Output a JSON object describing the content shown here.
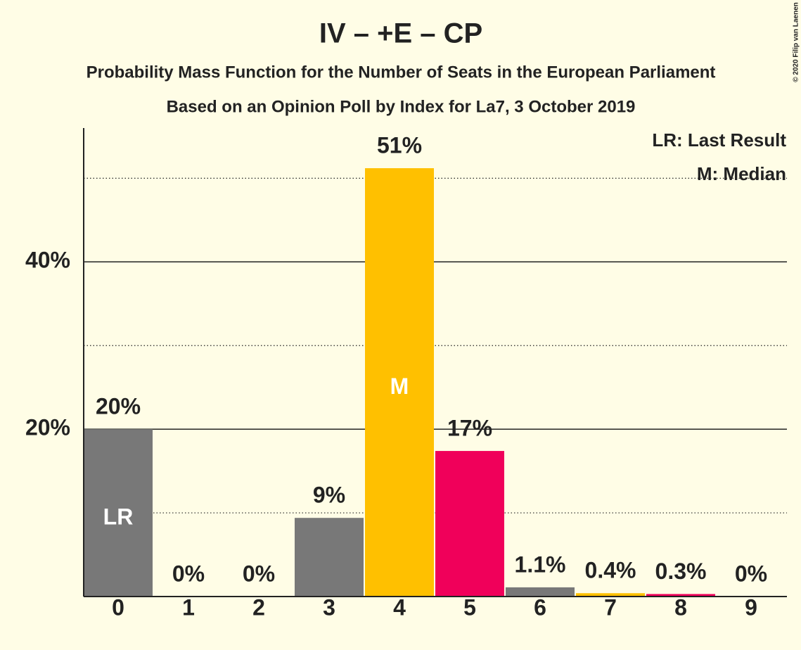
{
  "chart_data": {
    "type": "bar",
    "title": "IV – +E – CP",
    "subtitle": "Probability Mass Function for the Number of Seats in the European Parliament",
    "subtitle2": "Based on an Opinion Poll by Index for La7, 3 October 2019",
    "categories": [
      "0",
      "1",
      "2",
      "3",
      "4",
      "5",
      "6",
      "7",
      "8",
      "9"
    ],
    "values": [
      20.0,
      0,
      0,
      9.4,
      51.2,
      17.4,
      1.1,
      0.4,
      0.3,
      0
    ],
    "value_labels": [
      "20%",
      "0%",
      "0%",
      "9%",
      "51%",
      "17%",
      "1.1%",
      "0.4%",
      "0.3%",
      "0%"
    ],
    "colors": [
      "#787878",
      "#787878",
      "#787878",
      "#787878",
      "#ffc000",
      "#f0005a",
      "#787878",
      "#ffc000",
      "#f0005a",
      "#787878"
    ],
    "bar_annotations": [
      {
        "index": 0,
        "text": "LR"
      },
      {
        "index": 4,
        "text": "M"
      }
    ],
    "legend": [
      "LR: Last Result",
      "M: Median"
    ],
    "copyright": "© 2020 Filip van Laenen",
    "ylim": [
      0,
      56
    ],
    "yticks": [
      {
        "value": 20,
        "label": "20%"
      },
      {
        "value": 40,
        "label": "40%"
      }
    ],
    "minor_yticks": [
      10,
      30,
      50
    ],
    "grid": true
  }
}
